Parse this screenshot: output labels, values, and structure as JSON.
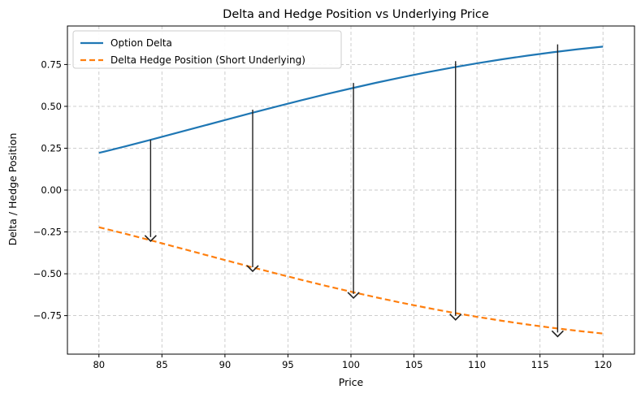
{
  "chart_data": {
    "type": "line",
    "title": "Delta and Hedge Position vs Underlying Price",
    "xlabel": "Price",
    "ylabel": "Delta / Hedge Position",
    "xlim": [
      77.5,
      122.5
    ],
    "ylim": [
      -0.98,
      0.98
    ],
    "xticks": [
      80,
      85,
      90,
      95,
      100,
      105,
      110,
      115,
      120
    ],
    "xtick_labels": [
      "80",
      "85",
      "90",
      "95",
      "100",
      "105",
      "110",
      "115",
      "120"
    ],
    "yticks": [
      -0.75,
      -0.5,
      -0.25,
      0.0,
      0.25,
      0.5,
      0.75
    ],
    "ytick_labels": [
      "−0.75",
      "−0.50",
      "−0.25",
      "0.00",
      "0.25",
      "0.50",
      "0.75"
    ],
    "grid": true,
    "legend_position": "top-left",
    "x": [
      80,
      82,
      84,
      86,
      88,
      90,
      92,
      94,
      96,
      98,
      100,
      102,
      104,
      106,
      108,
      110,
      112,
      114,
      116,
      118,
      120
    ],
    "series": [
      {
        "name": "Option Delta",
        "color": "#1f77b4",
        "style": "solid",
        "values": [
          0.222,
          0.259,
          0.298,
          0.338,
          0.378,
          0.418,
          0.458,
          0.497,
          0.535,
          0.572,
          0.607,
          0.641,
          0.673,
          0.703,
          0.731,
          0.757,
          0.781,
          0.803,
          0.823,
          0.841,
          0.857
        ]
      },
      {
        "name": "Delta Hedge Position (Short Underlying)",
        "color": "#ff7f0e",
        "style": "dashed",
        "values": [
          -0.222,
          -0.259,
          -0.298,
          -0.338,
          -0.378,
          -0.418,
          -0.458,
          -0.497,
          -0.535,
          -0.572,
          -0.607,
          -0.641,
          -0.673,
          -0.703,
          -0.731,
          -0.757,
          -0.781,
          -0.803,
          -0.823,
          -0.841,
          -0.857
        ]
      }
    ],
    "arrows": [
      {
        "x": 84.1,
        "from": 0.3,
        "to": -0.3
      },
      {
        "x": 92.2,
        "from": 0.48,
        "to": -0.48
      },
      {
        "x": 100.2,
        "from": 0.64,
        "to": -0.64
      },
      {
        "x": 108.3,
        "from": 0.77,
        "to": -0.77
      },
      {
        "x": 116.4,
        "from": 0.87,
        "to": -0.87
      }
    ],
    "arrow_color": "#222222",
    "grid_color": "#c8c8c8"
  }
}
